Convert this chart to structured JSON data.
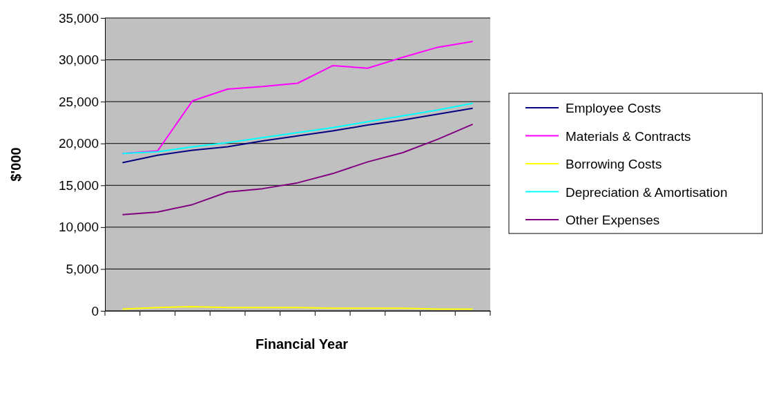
{
  "chart_data": {
    "type": "line",
    "xlabel": "Financial Year",
    "ylabel": "$'000",
    "categories": [
      null,
      null,
      null,
      null,
      null,
      null,
      null,
      null,
      null,
      null,
      null
    ],
    "ylim": [
      0,
      35000
    ],
    "yticks": [
      {
        "value": 0,
        "label": "0"
      },
      {
        "value": 5000,
        "label": "5,000"
      },
      {
        "value": 10000,
        "label": "10,000"
      },
      {
        "value": 15000,
        "label": "15,000"
      },
      {
        "value": 20000,
        "label": "20,000"
      },
      {
        "value": 25000,
        "label": "25,000"
      },
      {
        "value": 30000,
        "label": "30,000"
      },
      {
        "value": 35000,
        "label": "35,000"
      }
    ],
    "grid": "y",
    "legend": "right",
    "marker": "none",
    "line_style": "solid",
    "series": [
      {
        "name": "Employee Costs",
        "color": "#000080",
        "values": [
          17700,
          18600,
          19200,
          19600,
          20300,
          20900,
          21500,
          22200,
          22800,
          23500,
          24200
        ]
      },
      {
        "name": "Materials & Contracts",
        "color": "#ff00ff",
        "values": [
          18800,
          19100,
          25100,
          26500,
          26800,
          27200,
          29300,
          29000,
          30300,
          31500,
          32200
        ]
      },
      {
        "name": "Borrowing Costs",
        "color": "#ffff00",
        "values": [
          200,
          400,
          500,
          400,
          400,
          400,
          300,
          300,
          300,
          200,
          200
        ]
      },
      {
        "name": "Depreciation & Amortisation",
        "color": "#00ffff",
        "values": [
          18800,
          19000,
          19600,
          20100,
          20700,
          21300,
          21900,
          22600,
          23300,
          24000,
          24800
        ]
      },
      {
        "name": "Other Expenses",
        "color": "#800080",
        "values": [
          11500,
          11800,
          12700,
          14200,
          14600,
          15300,
          16400,
          17800,
          18900,
          20500,
          22300
        ]
      }
    ]
  }
}
